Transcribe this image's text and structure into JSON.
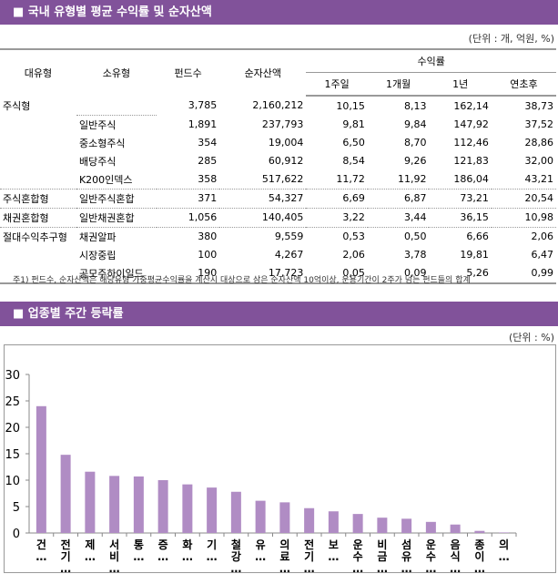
{
  "section1": {
    "title": "■ 국내 유형별 평균 수익률 및 순자산액",
    "unit": "(단위 : 개, 억원, %)",
    "headers": {
      "major": "대유형",
      "minor": "소유형",
      "funds": "펀드수",
      "assets": "순자산액",
      "returns": "수익률",
      "w1": "1주일",
      "m1": "1개월",
      "y1": "1년",
      "ytd": "연초후"
    },
    "rows": [
      [
        "주식형",
        "",
        "3,785",
        "2,160,212",
        "10,15",
        "8,13",
        "162,14",
        "38,73"
      ],
      [
        "",
        "일반주식",
        "1,891",
        "237,793",
        "9,81",
        "9,84",
        "147,92",
        "37,52"
      ],
      [
        "",
        "중소형주식",
        "354",
        "19,004",
        "6,50",
        "8,70",
        "112,46",
        "28,86"
      ],
      [
        "",
        "배당주식",
        "285",
        "60,912",
        "8,54",
        "9,26",
        "121,83",
        "32,00"
      ],
      [
        "",
        "K200인덱스",
        "358",
        "517,622",
        "11,72",
        "11,92",
        "186,04",
        "43,21"
      ],
      [
        "주식혼합형",
        "일반주식혼합",
        "371",
        "54,327",
        "6,69",
        "6,87",
        "73,21",
        "20,54"
      ],
      [
        "채권혼합형",
        "일반채권혼합",
        "1,056",
        "140,405",
        "3,22",
        "3,44",
        "36,15",
        "10,98"
      ],
      [
        "절대수익추구형",
        "채권알파",
        "380",
        "9,559",
        "0,53",
        "0,50",
        "6,66",
        "2,06"
      ],
      [
        "",
        "시장중립",
        "100",
        "4,267",
        "2,06",
        "3,78",
        "19,81",
        "6,47"
      ],
      [
        "",
        "공모주하이일드",
        "190",
        "17,723",
        "0,05",
        "0,09",
        "5,26",
        "0,99"
      ]
    ],
    "note": "주1) 펀드수, 순자산액은 해당유형 가중평균수익률을 계산시 대상으로 삼은 순자산액 10억이상, 운용기간이 2주가 넘는 펀드들의 합계"
  },
  "section2": {
    "title": "■ 업종별 주간 등락률",
    "unit": "(단위 : %)"
  },
  "chart_data": {
    "type": "bar",
    "color": "#b08cc4",
    "ylim": [
      0,
      30
    ],
    "yticks": [
      0,
      5,
      10,
      15,
      20,
      25,
      30
    ],
    "grid": false,
    "categories": [
      "건…",
      "전기…",
      "제…",
      "서비…",
      "통…",
      "증…",
      "화…",
      "기…",
      "철강…",
      "유…",
      "의료…",
      "전기…",
      "보…",
      "운수…",
      "비금…",
      "섬유…",
      "운수…",
      "음식…",
      "종이…",
      "의…"
    ],
    "values": [
      24.0,
      14.8,
      11.6,
      10.8,
      10.7,
      10.0,
      9.2,
      8.6,
      7.8,
      6.1,
      5.8,
      4.7,
      4.1,
      3.6,
      2.9,
      2.7,
      2.1,
      1.6,
      0.4,
      0.1
    ]
  }
}
